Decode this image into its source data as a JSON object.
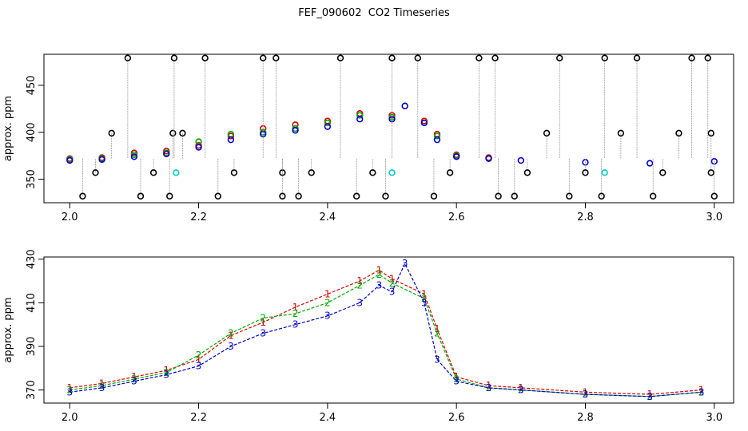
{
  "title": "FEF_090602  CO2 Timeseries",
  "chart_data": [
    {
      "type": "scatter",
      "ylabel": "approx. ppm",
      "xlabel": "",
      "xlim": [
        1.96,
        3.03
      ],
      "ylim": [
        325,
        483
      ],
      "x_ticks": [
        2.0,
        2.2,
        2.4,
        2.6,
        2.8,
        3.0
      ],
      "x_tick_labels": [
        "2.0",
        "2.2",
        "2.4",
        "2.6",
        "2.8",
        "3.0"
      ],
      "y_ticks": [
        350,
        400,
        450
      ],
      "y_tick_labels": [
        "350",
        "400",
        "450"
      ],
      "series": [
        {
          "color": "#dd0000",
          "values": [
            [
              2.0,
              372
            ],
            [
              2.05,
              373
            ],
            [
              2.1,
              378
            ],
            [
              2.15,
              380
            ],
            [
              2.2,
              386
            ],
            [
              2.25,
              396
            ],
            [
              2.3,
              404
            ],
            [
              2.35,
              408
            ],
            [
              2.4,
              412
            ],
            [
              2.45,
              420
            ],
            [
              2.5,
              418
            ],
            [
              2.55,
              412
            ],
            [
              2.57,
              398
            ],
            [
              2.6,
              376
            ],
            [
              2.65,
              373
            ]
          ]
        },
        {
          "color": "#00aa00",
          "values": [
            [
              2.0,
              371
            ],
            [
              2.05,
              372
            ],
            [
              2.1,
              376
            ],
            [
              2.15,
              378
            ],
            [
              2.2,
              390
            ],
            [
              2.25,
              398
            ],
            [
              2.3,
              400
            ],
            [
              2.35,
              404
            ],
            [
              2.4,
              410
            ],
            [
              2.45,
              418
            ],
            [
              2.5,
              416
            ],
            [
              2.55,
              410
            ],
            [
              2.57,
              396
            ],
            [
              2.6,
              375
            ],
            [
              2.65,
              372
            ]
          ]
        },
        {
          "color": "#0000cc",
          "values": [
            [
              2.0,
              370
            ],
            [
              2.05,
              371
            ],
            [
              2.1,
              374
            ],
            [
              2.15,
              377
            ],
            [
              2.2,
              384
            ],
            [
              2.25,
              392
            ],
            [
              2.3,
              398
            ],
            [
              2.35,
              402
            ],
            [
              2.4,
              406
            ],
            [
              2.45,
              414
            ],
            [
              2.5,
              414
            ],
            [
              2.52,
              428
            ],
            [
              2.55,
              410
            ],
            [
              2.57,
              392
            ],
            [
              2.6,
              374
            ],
            [
              2.65,
              372
            ],
            [
              2.7,
              370
            ],
            [
              2.8,
              368
            ],
            [
              2.9,
              367
            ],
            [
              3.0,
              369
            ]
          ]
        },
        {
          "color": "#000000",
          "values": [
            [
              2.02,
              332
            ],
            [
              2.04,
              357
            ],
            [
              2.065,
              399
            ],
            [
              2.09,
              479
            ],
            [
              2.11,
              332
            ],
            [
              2.13,
              357
            ],
            [
              2.155,
              332
            ],
            [
              2.16,
              399
            ],
            [
              2.162,
              479
            ],
            [
              2.175,
              399
            ],
            [
              2.21,
              479
            ],
            [
              2.23,
              332
            ],
            [
              2.255,
              357
            ],
            [
              2.3,
              479
            ],
            [
              2.32,
              479
            ],
            [
              2.33,
              357
            ],
            [
              2.33,
              332
            ],
            [
              2.355,
              332
            ],
            [
              2.375,
              357
            ],
            [
              2.42,
              479
            ],
            [
              2.445,
              332
            ],
            [
              2.47,
              357
            ],
            [
              2.49,
              332
            ],
            [
              2.5,
              479
            ],
            [
              2.54,
              479
            ],
            [
              2.565,
              332
            ],
            [
              2.59,
              357
            ],
            [
              2.635,
              479
            ],
            [
              2.66,
              479
            ],
            [
              2.665,
              332
            ],
            [
              2.69,
              332
            ],
            [
              2.71,
              357
            ],
            [
              2.74,
              399
            ],
            [
              2.76,
              479
            ],
            [
              2.775,
              332
            ],
            [
              2.8,
              357
            ],
            [
              2.825,
              332
            ],
            [
              2.83,
              479
            ],
            [
              2.855,
              399
            ],
            [
              2.88,
              479
            ],
            [
              2.905,
              332
            ],
            [
              2.92,
              357
            ],
            [
              2.945,
              399
            ],
            [
              2.965,
              479
            ],
            [
              2.99,
              479
            ],
            [
              2.995,
              399
            ],
            [
              2.995,
              357
            ],
            [
              3.0,
              332
            ]
          ]
        },
        {
          "color": "#00cccc",
          "values": [
            [
              2.165,
              357
            ],
            [
              2.5,
              357
            ],
            [
              2.83,
              357
            ]
          ]
        }
      ]
    },
    {
      "type": "line",
      "ylabel": "approx. ppm",
      "xlabel": "",
      "xlim": [
        1.96,
        3.03
      ],
      "ylim": [
        364,
        431
      ],
      "x_ticks": [
        2.0,
        2.2,
        2.4,
        2.6,
        2.8,
        3.0
      ],
      "x_tick_labels": [
        "2.0",
        "2.2",
        "2.4",
        "2.6",
        "2.8",
        "3.0"
      ],
      "y_ticks": [
        370,
        390,
        410,
        430
      ],
      "y_tick_labels": [
        "370",
        "390",
        "410",
        "430"
      ],
      "series": [
        {
          "name": "1",
          "color": "#dd0000",
          "x": [
            2.0,
            2.05,
            2.1,
            2.15,
            2.2,
            2.25,
            2.3,
            2.35,
            2.4,
            2.45,
            2.48,
            2.5,
            2.55,
            2.57,
            2.6,
            2.65,
            2.7,
            2.8,
            2.9,
            2.98
          ],
          "values": [
            371,
            373,
            376,
            379,
            384,
            395,
            401,
            408,
            414,
            420,
            425,
            421,
            414,
            398,
            376,
            372,
            371,
            369,
            368,
            370
          ]
        },
        {
          "name": "2",
          "color": "#00aa00",
          "x": [
            2.0,
            2.05,
            2.1,
            2.15,
            2.2,
            2.25,
            2.3,
            2.35,
            2.4,
            2.45,
            2.48,
            2.5,
            2.55,
            2.57,
            2.6,
            2.65,
            2.7,
            2.8,
            2.9,
            2.98
          ],
          "values": [
            370,
            372,
            375,
            378,
            386,
            396,
            403,
            405,
            410,
            418,
            423,
            419,
            412,
            396,
            375,
            371,
            370,
            368,
            367,
            369
          ]
        },
        {
          "name": "3",
          "color": "#0000cc",
          "x": [
            2.0,
            2.05,
            2.1,
            2.15,
            2.2,
            2.25,
            2.3,
            2.35,
            2.4,
            2.45,
            2.48,
            2.5,
            2.52,
            2.55,
            2.57,
            2.6,
            2.65,
            2.7,
            2.8,
            2.9,
            2.98
          ],
          "values": [
            369,
            371,
            374,
            377,
            381,
            390,
            396,
            400,
            404,
            410,
            418,
            415,
            428,
            410,
            384,
            374,
            371,
            370,
            368,
            367,
            369
          ]
        }
      ]
    }
  ]
}
